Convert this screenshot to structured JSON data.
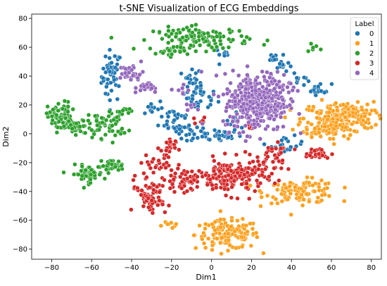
{
  "chart_data": {
    "type": "scatter",
    "title": "t-SNE Visualization of ECG Embeddings",
    "xlabel": "Dim1",
    "ylabel": "Dim2",
    "xlim": [
      -90,
      85
    ],
    "ylim": [
      -87,
      83
    ],
    "xticks": [
      -80,
      -60,
      -40,
      -20,
      0,
      20,
      40,
      60,
      80
    ],
    "yticks": [
      -80,
      -60,
      -40,
      -20,
      0,
      20,
      40,
      60,
      80
    ],
    "grid": false,
    "legend": {
      "title": "Label",
      "placement": "top-right"
    },
    "series": [
      {
        "name": "0",
        "color": "#1f77b4",
        "clusters": [
          {
            "c": [
              -50,
              40
            ],
            "s": [
              2.5,
              9
            ],
            "n": 45
          },
          {
            "c": [
              -10,
              33
            ],
            "s": [
              2.5,
              7
            ],
            "n": 25
          },
          {
            "c": [
              -5,
              25
            ],
            "s": [
              4,
              5
            ],
            "n": 22
          },
          {
            "c": [
              1,
              -1
            ],
            "s": [
              7,
              2.5
            ],
            "n": 40
          },
          {
            "c": [
              -18,
              10
            ],
            "s": [
              4,
              5
            ],
            "n": 30
          },
          {
            "c": [
              -30,
              18
            ],
            "s": [
              3,
              3
            ],
            "n": 12
          },
          {
            "c": [
              -12,
              3
            ],
            "s": [
              3,
              3
            ],
            "n": 12
          },
          {
            "c": [
              10,
              8
            ],
            "s": [
              3,
              3
            ],
            "n": 10
          },
          {
            "c": [
              36,
              48
            ],
            "s": [
              2,
              3
            ],
            "n": 14
          },
          {
            "c": [
              30,
              53
            ],
            "s": [
              2,
              2
            ],
            "n": 8
          },
          {
            "c": [
              43,
              37
            ],
            "s": [
              2,
              2
            ],
            "n": 10
          },
          {
            "c": [
              54,
              31
            ],
            "s": [
              3,
              2
            ],
            "n": 16
          },
          {
            "c": [
              38,
              -8
            ],
            "s": [
              4,
              3
            ],
            "n": 18
          },
          {
            "c": [
              6,
              55
            ],
            "s": [
              2,
              2
            ],
            "n": 8
          },
          {
            "c": [
              -50,
              45
            ],
            "s": [
              2,
              2
            ],
            "n": 8
          }
        ]
      },
      {
        "name": "1",
        "color": "#ff9f1a",
        "clusters": [
          {
            "c": [
              8,
              -70
            ],
            "s": [
              8,
              5
            ],
            "n": 140
          },
          {
            "c": [
              -20,
              -62
            ],
            "s": [
              2,
              2
            ],
            "n": 8
          },
          {
            "c": [
              45,
              -40
            ],
            "s": [
              9,
              4
            ],
            "n": 110
          },
          {
            "c": [
              63,
              10
            ],
            "s": [
              9,
              6
            ],
            "n": 190
          },
          {
            "c": [
              70,
              15
            ],
            "s": [
              5,
              3
            ],
            "n": 45
          },
          {
            "c": [
              55,
              2
            ],
            "s": [
              4,
              3
            ],
            "n": 25
          }
        ]
      },
      {
        "name": "2",
        "color": "#2ca02c",
        "clusters": [
          {
            "c": [
              -76,
              12
            ],
            "s": [
              3,
              5
            ],
            "n": 70
          },
          {
            "c": [
              -68,
              4
            ],
            "s": [
              4,
              3
            ],
            "n": 40
          },
          {
            "c": [
              -52,
              7
            ],
            "s": [
              5,
              5
            ],
            "n": 55
          },
          {
            "c": [
              -62,
              -28
            ],
            "s": [
              4,
              3
            ],
            "n": 55
          },
          {
            "c": [
              -50,
              -22
            ],
            "s": [
              3,
              2
            ],
            "n": 30
          },
          {
            "c": [
              -5,
              66
            ],
            "s": [
              12,
              4
            ],
            "n": 120
          },
          {
            "c": [
              -20,
              58
            ],
            "s": [
              4,
              2
            ],
            "n": 20
          },
          {
            "c": [
              -44,
              15
            ],
            "s": [
              2,
              2
            ],
            "n": 8
          },
          {
            "c": [
              52,
              58
            ],
            "s": [
              2,
              2
            ],
            "n": 6
          }
        ]
      },
      {
        "name": "3",
        "color": "#d62728",
        "clusters": [
          {
            "c": [
              10,
              -30
            ],
            "s": [
              8,
              6
            ],
            "n": 170
          },
          {
            "c": [
              -14,
              -32
            ],
            "s": [
              5,
              4
            ],
            "n": 50
          },
          {
            "c": [
              -32,
              -38
            ],
            "s": [
              4,
              5
            ],
            "n": 40
          },
          {
            "c": [
              -30,
              -48
            ],
            "s": [
              4,
              3
            ],
            "n": 30
          },
          {
            "c": [
              -22,
              -10
            ],
            "s": [
              2,
              4
            ],
            "n": 18
          },
          {
            "c": [
              -28,
              -20
            ],
            "s": [
              4,
              4
            ],
            "n": 25
          },
          {
            "c": [
              28,
              -22
            ],
            "s": [
              4,
              6
            ],
            "n": 40
          },
          {
            "c": [
              52,
              -14
            ],
            "s": [
              4,
              2
            ],
            "n": 25
          },
          {
            "c": [
              -5,
              10
            ],
            "s": [
              2,
              2
            ],
            "n": 6
          },
          {
            "c": [
              20,
              5
            ],
            "s": [
              2,
              2
            ],
            "n": 6
          },
          {
            "c": [
              35,
              -10
            ],
            "s": [
              2,
              2
            ],
            "n": 8
          }
        ]
      },
      {
        "name": "4",
        "color": "#9467bd",
        "clusters": [
          {
            "c": [
              22,
              22
            ],
            "s": [
              8,
              10
            ],
            "n": 320
          },
          {
            "c": [
              30,
              30
            ],
            "s": [
              5,
              7
            ],
            "n": 60
          },
          {
            "c": [
              -40,
              42
            ],
            "s": [
              3,
              3
            ],
            "n": 30
          },
          {
            "c": [
              -32,
              32
            ],
            "s": [
              3,
              2
            ],
            "n": 20
          },
          {
            "c": [
              -15,
              30
            ],
            "s": [
              2,
              2
            ],
            "n": 8
          },
          {
            "c": [
              -10,
              18
            ],
            "s": [
              2,
              2
            ],
            "n": 6
          }
        ]
      }
    ]
  }
}
